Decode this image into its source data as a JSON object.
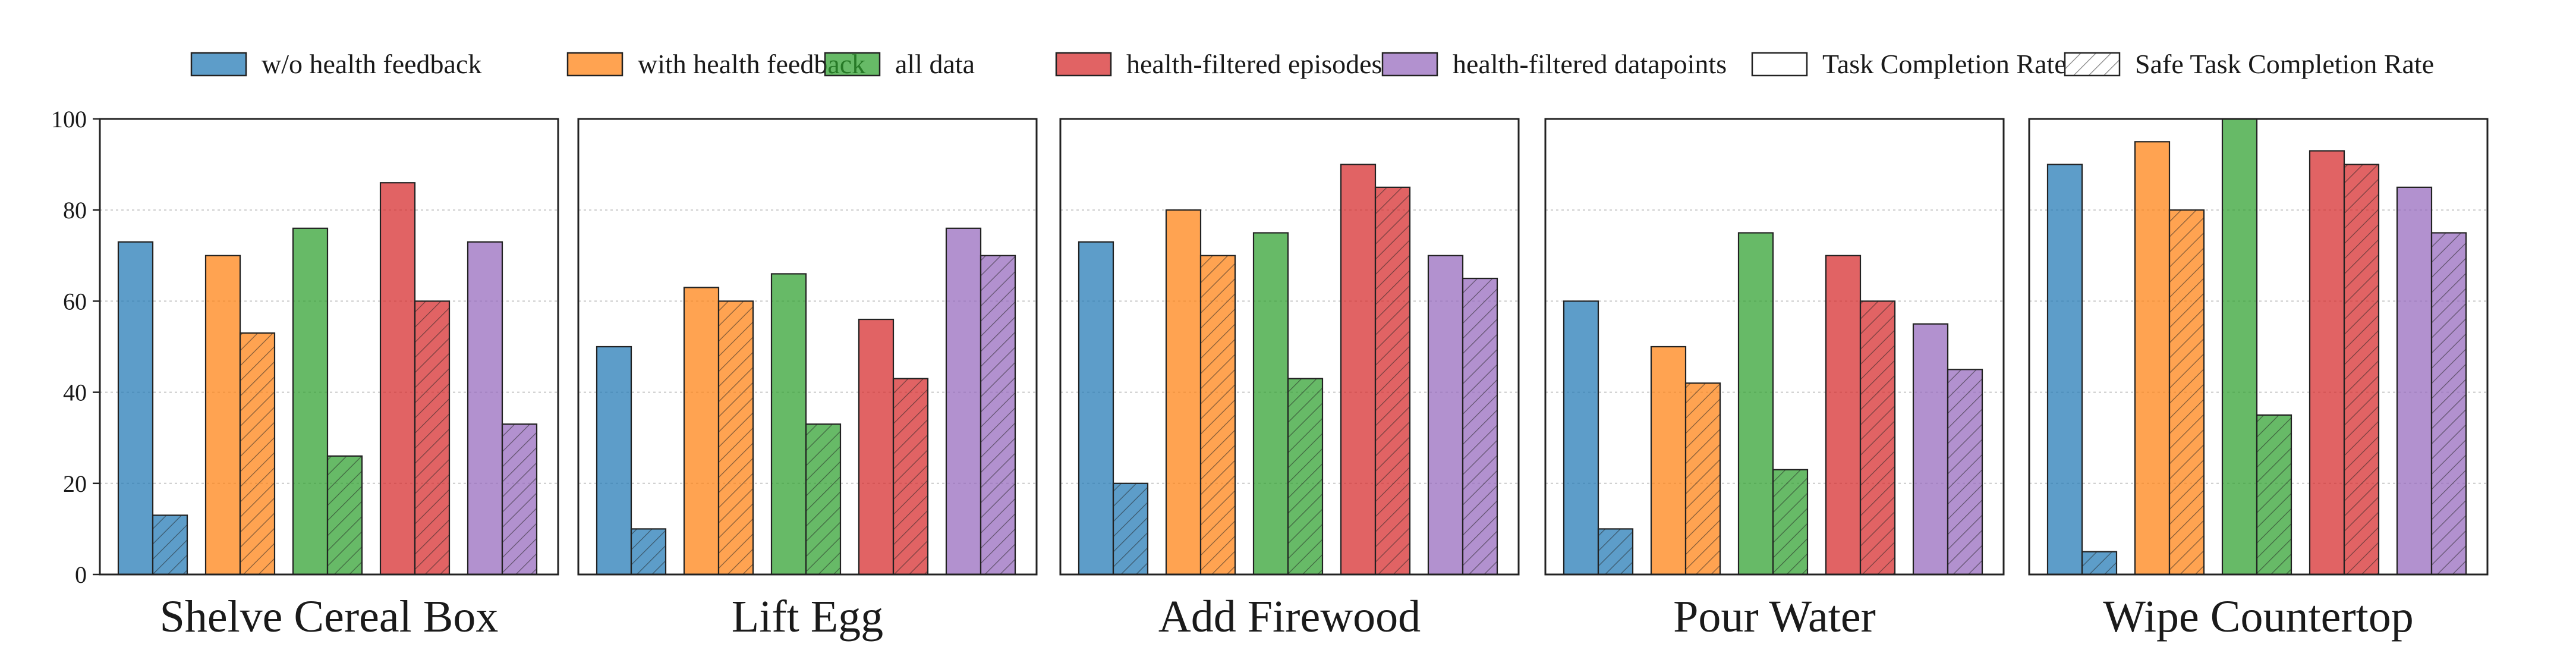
{
  "chart_data": {
    "type": "bar",
    "ylim": [
      0,
      100
    ],
    "yticks": [
      0,
      20,
      40,
      60,
      80,
      100
    ],
    "grid": true,
    "legend_position": "top",
    "colors": {
      "w/o health feedback": "#1f77b4",
      "with health feedback": "#ff7f0e",
      "all data": "#2ca02c",
      "health-filtered episodes": "#d62728",
      "health-filtered datapoints": "#9467bd"
    },
    "legend": {
      "series": [
        {
          "label": "w/o health feedback",
          "color": "#1f77b4"
        },
        {
          "label": "with health feedback",
          "color": "#ff7f0e"
        },
        {
          "label": "all data",
          "color": "#2ca02c"
        },
        {
          "label": "health-filtered episodes",
          "color": "#d62728"
        },
        {
          "label": "health-filtered datapoints",
          "color": "#9467bd"
        }
      ],
      "metrics": [
        {
          "label": "Task Completion Rate",
          "pattern": "solid"
        },
        {
          "label": "Safe Task Completion Rate",
          "pattern": "hatched"
        }
      ]
    },
    "metrics": [
      "Task Completion Rate",
      "Safe Task Completion Rate"
    ],
    "series_names": [
      "w/o health feedback",
      "with health feedback",
      "all data",
      "health-filtered episodes",
      "health-filtered datapoints"
    ],
    "panels": [
      {
        "title": "Shelve Cereal Box",
        "task_completion": [
          73,
          70,
          76,
          86,
          73
        ],
        "safe_task_completion": [
          13,
          53,
          26,
          60,
          33
        ]
      },
      {
        "title": "Lift Egg",
        "task_completion": [
          50,
          63,
          66,
          56,
          76
        ],
        "safe_task_completion": [
          10,
          60,
          33,
          43,
          70
        ]
      },
      {
        "title": "Add Firewood",
        "task_completion": [
          73,
          80,
          75,
          90,
          70
        ],
        "safe_task_completion": [
          20,
          70,
          43,
          85,
          65
        ]
      },
      {
        "title": "Pour Water",
        "task_completion": [
          60,
          50,
          75,
          70,
          55
        ],
        "safe_task_completion": [
          10,
          42,
          23,
          60,
          45
        ]
      },
      {
        "title": "Wipe Countertop",
        "task_completion": [
          90,
          95,
          100,
          93,
          85
        ],
        "safe_task_completion": [
          5,
          80,
          35,
          90,
          75
        ]
      }
    ]
  }
}
